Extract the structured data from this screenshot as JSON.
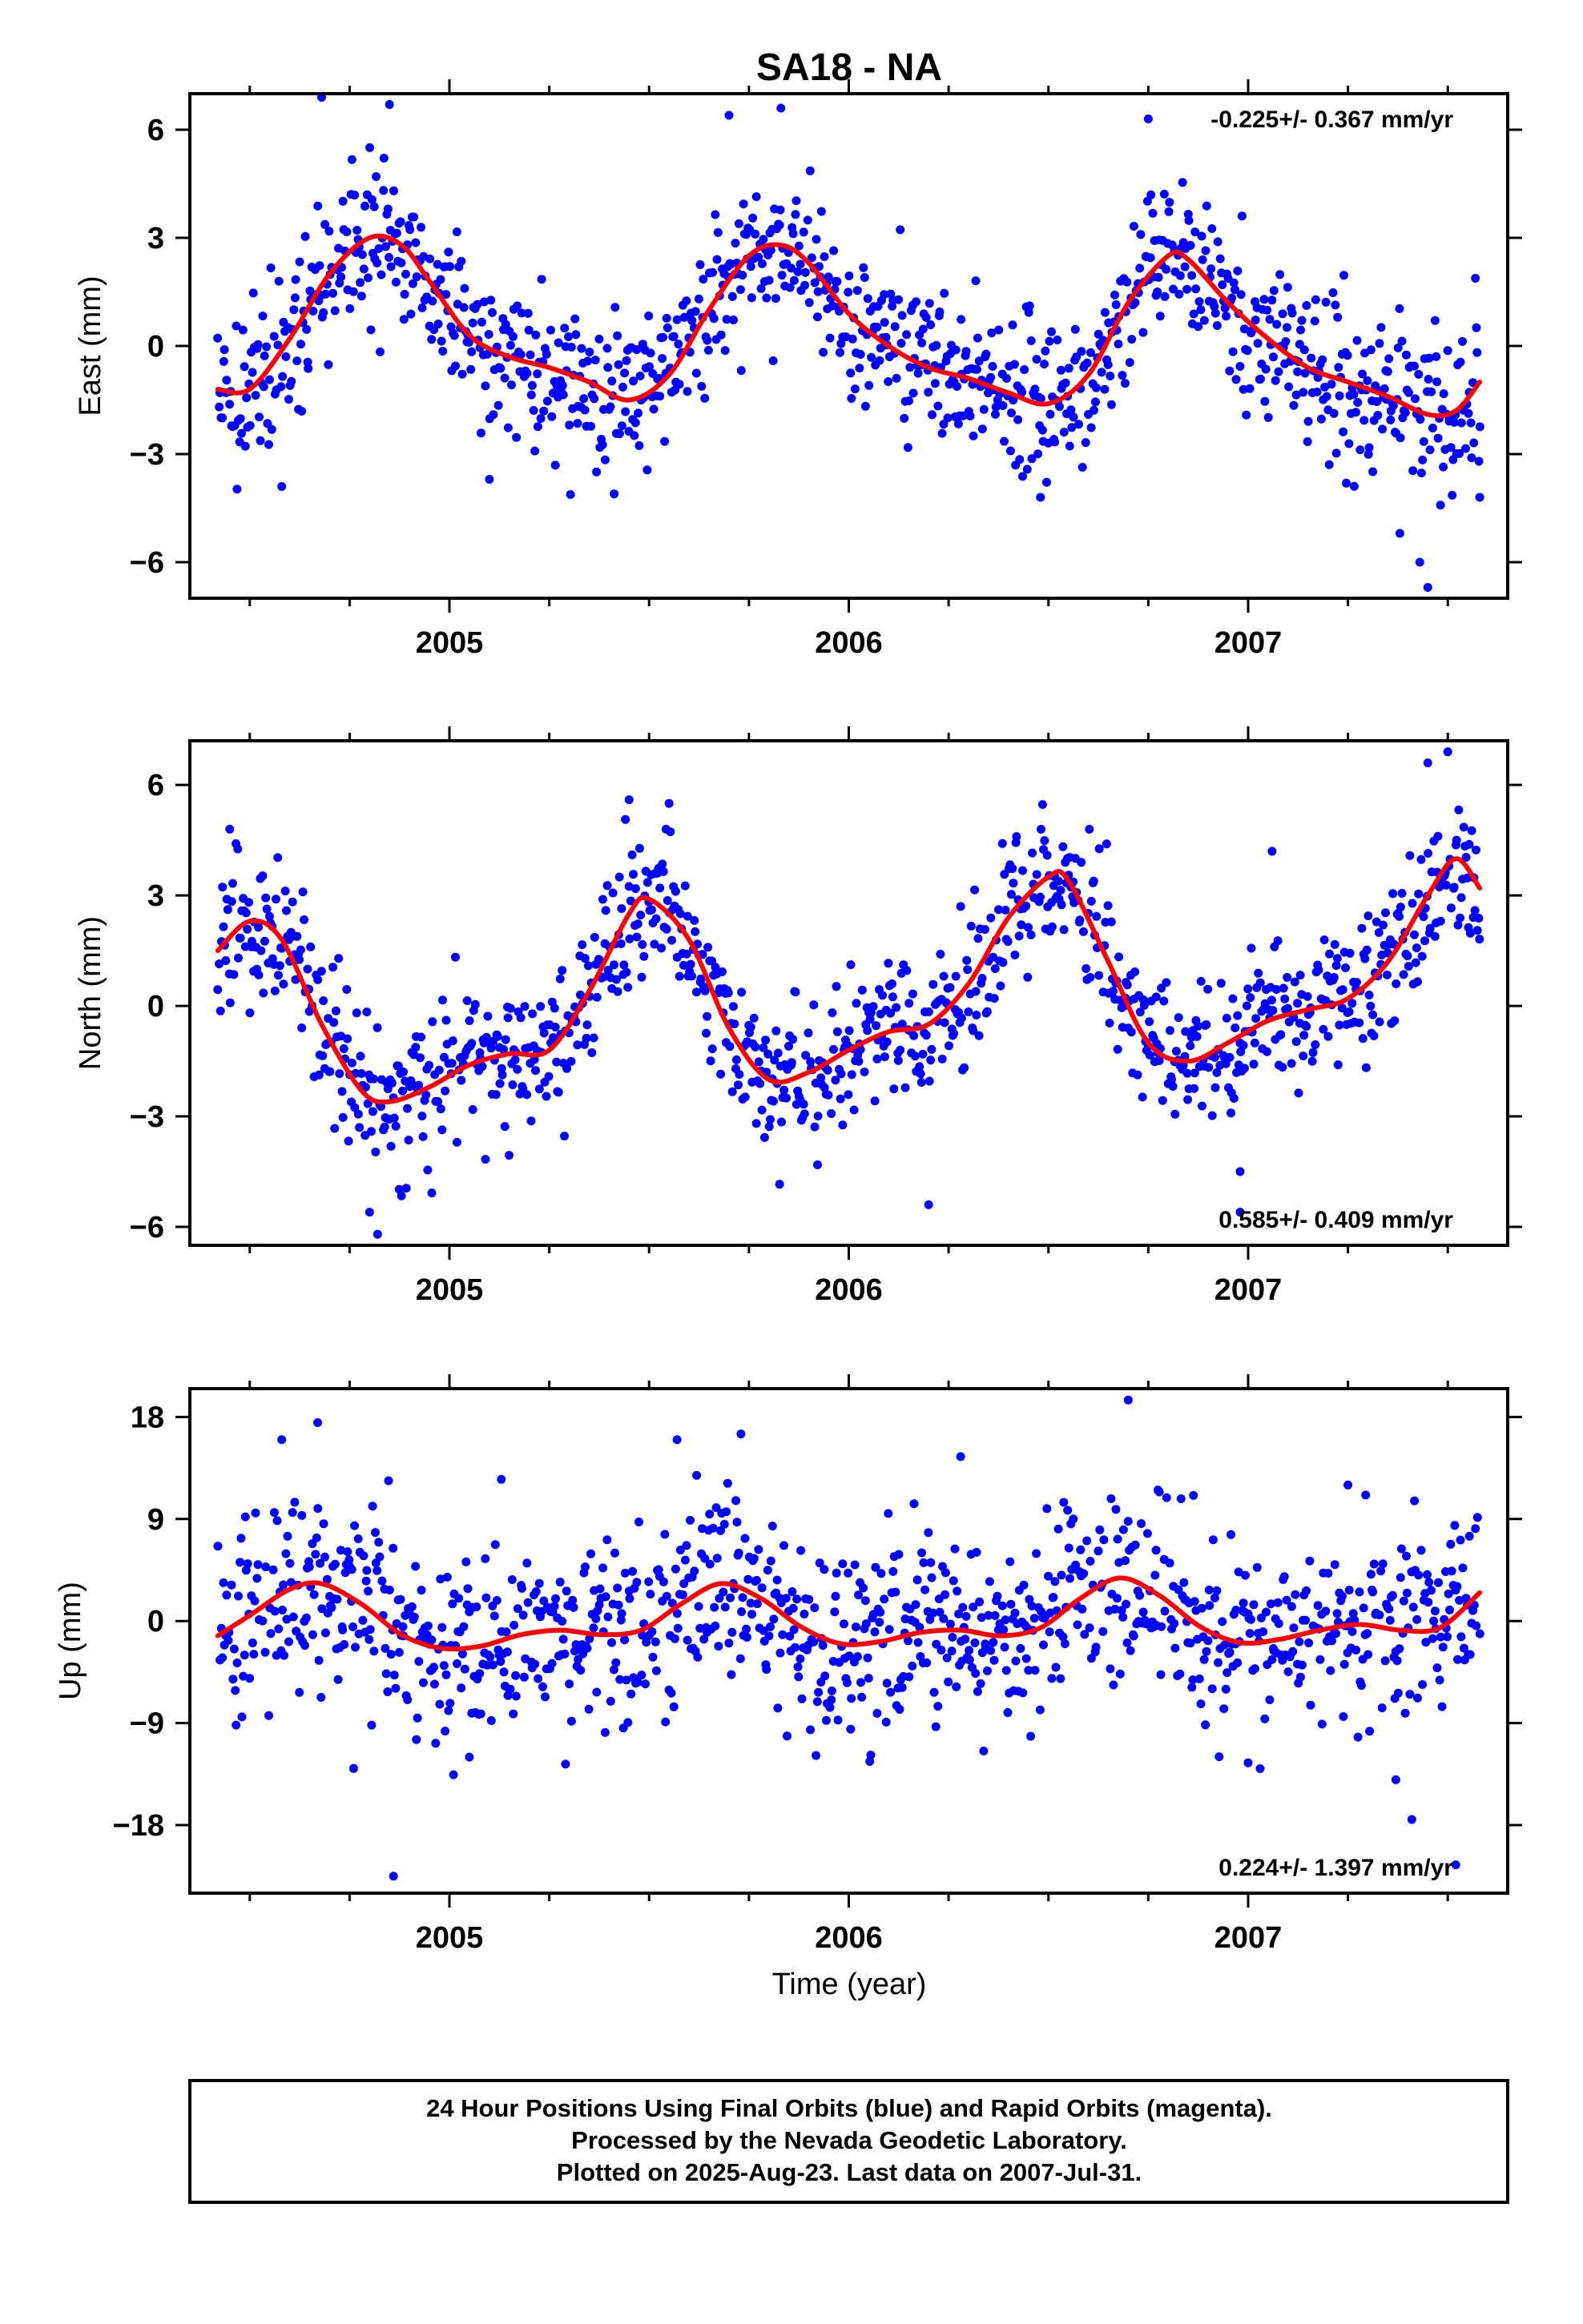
{
  "figure": {
    "title": "SA18 - NA",
    "xlabel": "Time (year)",
    "footer_lines": [
      "24 Hour Positions Using Final Orbits (blue) and Rapid Orbits (magenta).",
      "Processed by the Nevada Geodetic Laboratory.",
      "Plotted on 2025-Aug-23. Last data on 2007-Jul-31."
    ]
  },
  "colors": {
    "points": "#0000ff",
    "fit_line": "#ff0000",
    "frame": "#000000",
    "background": "#ffffff"
  },
  "chart_data": [
    {
      "type": "scatter",
      "ylabel": "East (mm)",
      "rate_label": "-0.225+/- 0.367 mm/yr",
      "rate_position": "top-right",
      "xlim": [
        2004.35,
        2007.65
      ],
      "ylim": [
        -7.0,
        7.0
      ],
      "xticks": [
        2005,
        2006,
        2007
      ],
      "yticks": [
        6,
        3,
        0,
        -3,
        -6
      ],
      "ytick_labels": [
        "6",
        "3",
        "0",
        "−3",
        "−6"
      ],
      "grid": false,
      "fit_curve": {
        "x": [
          2004.42,
          2004.5,
          2004.6,
          2004.7,
          2004.8,
          2004.88,
          2004.95,
          2005.05,
          2005.15,
          2005.25,
          2005.35,
          2005.45,
          2005.55,
          2005.65,
          2005.75,
          2005.83,
          2005.9,
          2006.0,
          2006.1,
          2006.2,
          2006.3,
          2006.4,
          2006.5,
          2006.6,
          2006.7,
          2006.8,
          2006.85,
          2006.95,
          2007.05,
          2007.15,
          2007.25,
          2007.35,
          2007.45,
          2007.52,
          2007.58
        ],
        "y": [
          -1.2,
          -1.2,
          0.2,
          2.0,
          3.0,
          2.8,
          1.8,
          0.3,
          -0.3,
          -0.6,
          -1.0,
          -1.5,
          -0.8,
          1.0,
          2.5,
          2.8,
          2.3,
          0.9,
          0.0,
          -0.6,
          -0.9,
          -1.3,
          -1.6,
          -0.8,
          1.2,
          2.5,
          2.4,
          1.2,
          0.2,
          -0.6,
          -1.0,
          -1.4,
          -1.9,
          -1.8,
          -1.0
        ]
      },
      "points": {
        "start": 2004.42,
        "end": 2007.58,
        "count": 1100,
        "noise_sd": 1.1,
        "seed": 11,
        "outliers": [
          {
            "x": 2004.68,
            "y": 6.9
          },
          {
            "x": 2004.85,
            "y": 6.7
          },
          {
            "x": 2005.7,
            "y": 6.4
          },
          {
            "x": 2005.83,
            "y": 6.6
          },
          {
            "x": 2006.75,
            "y": 6.3
          },
          {
            "x": 2007.45,
            "y": -6.7
          },
          {
            "x": 2007.43,
            "y": -6.0
          },
          {
            "x": 2007.38,
            "y": -5.2
          },
          {
            "x": 2004.58,
            "y": -3.9
          },
          {
            "x": 2006.48,
            "y": -4.2
          },
          {
            "x": 2007.58,
            "y": -4.2
          },
          {
            "x": 2005.1,
            "y": -3.7
          }
        ]
      }
    },
    {
      "type": "scatter",
      "ylabel": "North (mm)",
      "rate_label": "0.585+/- 0.409 mm/yr",
      "rate_position": "bottom-right",
      "xlim": [
        2004.35,
        2007.65
      ],
      "ylim": [
        -6.5,
        7.2
      ],
      "xticks": [
        2005,
        2006,
        2007
      ],
      "yticks": [
        6,
        3,
        0,
        -3,
        -6
      ],
      "ytick_labels": [
        "6",
        "3",
        "0",
        "−3",
        "−6"
      ],
      "grid": false,
      "fit_curve": {
        "x": [
          2004.42,
          2004.5,
          2004.58,
          2004.68,
          2004.78,
          2004.85,
          2004.95,
          2005.05,
          2005.15,
          2005.25,
          2005.35,
          2005.45,
          2005.5,
          2005.6,
          2005.7,
          2005.8,
          2005.9,
          2006.0,
          2006.1,
          2006.2,
          2006.3,
          2006.4,
          2006.5,
          2006.55,
          2006.65,
          2006.75,
          2006.85,
          2006.95,
          2007.05,
          2007.15,
          2007.25,
          2007.35,
          2007.45,
          2007.52,
          2007.58
        ],
        "y": [
          1.5,
          2.3,
          1.8,
          -0.5,
          -2.3,
          -2.6,
          -2.2,
          -1.6,
          -1.3,
          -1.2,
          0.4,
          2.5,
          2.9,
          1.8,
          -0.6,
          -2.0,
          -1.8,
          -1.2,
          -0.7,
          -0.5,
          0.6,
          2.4,
          3.5,
          3.4,
          1.2,
          -1.0,
          -1.5,
          -1.0,
          -0.4,
          -0.1,
          0.2,
          1.2,
          3.0,
          4.0,
          3.2
        ]
      },
      "points": {
        "start": 2004.42,
        "end": 2007.58,
        "count": 1100,
        "noise_sd": 1.0,
        "seed": 23,
        "outliers": [
          {
            "x": 2004.82,
            "y": -6.2
          },
          {
            "x": 2004.8,
            "y": -5.6
          },
          {
            "x": 2006.2,
            "y": -5.4
          },
          {
            "x": 2006.98,
            "y": -5.6
          },
          {
            "x": 2006.98,
            "y": -4.5
          },
          {
            "x": 2005.55,
            "y": 5.5
          },
          {
            "x": 2005.45,
            "y": 5.6
          },
          {
            "x": 2007.5,
            "y": 6.9
          },
          {
            "x": 2007.45,
            "y": 6.6
          },
          {
            "x": 2007.06,
            "y": 4.2
          },
          {
            "x": 2006.42,
            "y": 4.6
          },
          {
            "x": 2004.45,
            "y": 4.8
          }
        ]
      }
    },
    {
      "type": "scatter",
      "ylabel": "Up (mm)",
      "rate_label": "0.224+/- 1.397 mm/yr",
      "rate_position": "bottom-right",
      "xlim": [
        2004.35,
        2007.65
      ],
      "ylim": [
        -24.0,
        20.5
      ],
      "xticks": [
        2005,
        2006,
        2007
      ],
      "yticks": [
        18,
        9,
        0,
        -9,
        -18
      ],
      "ytick_labels": [
        "18",
        "9",
        "0",
        "−9",
        "−18"
      ],
      "grid": false,
      "fit_curve": {
        "x": [
          2004.42,
          2004.5,
          2004.6,
          2004.68,
          2004.78,
          2004.88,
          2004.98,
          2005.08,
          2005.18,
          2005.28,
          2005.38,
          2005.48,
          2005.58,
          2005.68,
          2005.78,
          2005.88,
          2005.98,
          2006.08,
          2006.18,
          2006.28,
          2006.38,
          2006.48,
          2006.58,
          2006.68,
          2006.78,
          2006.88,
          2006.98,
          2007.08,
          2007.18,
          2007.28,
          2007.38,
          2007.48,
          2007.58
        ],
        "y": [
          -1.3,
          0.5,
          2.8,
          3.3,
          1.5,
          -1.2,
          -2.4,
          -2.2,
          -1.2,
          -0.8,
          -1.2,
          -0.8,
          1.5,
          3.3,
          2.0,
          -0.5,
          -2.0,
          -1.8,
          -1.0,
          -0.8,
          -1.3,
          -0.6,
          2.0,
          3.8,
          2.2,
          -0.5,
          -1.9,
          -1.6,
          -0.8,
          -0.3,
          -0.8,
          -0.6,
          2.5
        ]
      },
      "points": {
        "start": 2004.42,
        "end": 2007.58,
        "count": 1100,
        "noise_sd": 4.2,
        "seed": 37,
        "outliers": [
          {
            "x": 2004.86,
            "y": -22.5
          },
          {
            "x": 2007.52,
            "y": -21.5
          },
          {
            "x": 2007.41,
            "y": -17.5
          },
          {
            "x": 2007.37,
            "y": -14.0
          },
          {
            "x": 2006.7,
            "y": 19.5
          },
          {
            "x": 2004.67,
            "y": 17.5
          },
          {
            "x": 2004.58,
            "y": 16.0
          },
          {
            "x": 2005.73,
            "y": 16.5
          },
          {
            "x": 2005.57,
            "y": 16.0
          },
          {
            "x": 2004.76,
            "y": -13.0
          },
          {
            "x": 2005.13,
            "y": 12.5
          },
          {
            "x": 2006.28,
            "y": 14.5
          },
          {
            "x": 2007.25,
            "y": 12.0
          },
          {
            "x": 2007.0,
            "y": -12.5
          },
          {
            "x": 2005.05,
            "y": -12.0
          }
        ]
      }
    }
  ]
}
